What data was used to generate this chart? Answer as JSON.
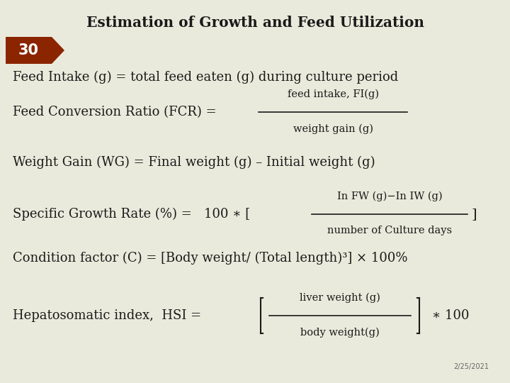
{
  "title": "Estimation of Growth and Feed Utilization",
  "slide_number": "30",
  "bg_color": "#eaeadc",
  "title_color": "#1a1a1a",
  "text_color": "#1a1a1a",
  "badge_bg": "#8B2500",
  "badge_text_color": "#ffffff",
  "date_text": "2/25/2021",
  "figsize": [
    7.2,
    5.4
  ],
  "dpi": 100
}
